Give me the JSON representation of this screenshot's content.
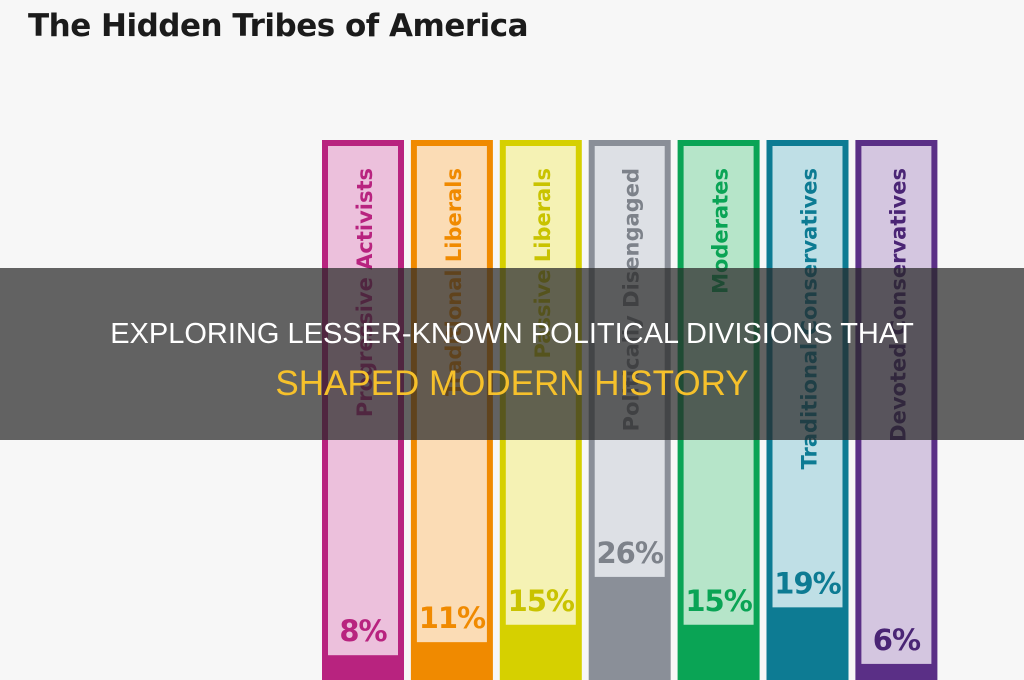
{
  "chart_data": {
    "type": "bar",
    "title": "The Hidden Tribes of America",
    "categories": [
      "Progressive Activists",
      "Traditional Liberals",
      "Passive Liberals",
      "Politically Disengaged",
      "Moderates",
      "Traditional Conservatives",
      "Devoted Conservatives"
    ],
    "values": [
      8,
      11,
      15,
      26,
      15,
      19,
      6
    ],
    "value_labels": [
      "8%",
      "11%",
      "15%",
      "26%",
      "15%",
      "19%",
      "6%"
    ],
    "unit": "%",
    "colors": [
      "#b8237f",
      "#f08a00",
      "#d6d000",
      "#8a8f98",
      "#0aa455",
      "#0d7b93",
      "#5a2f86"
    ],
    "light_colors": [
      "#ecc0dc",
      "#fbdcb5",
      "#f5f2b4",
      "#dde0e5",
      "#b6e5c9",
      "#bfdfe6",
      "#d4c6e0"
    ],
    "label_colors": [
      "#b8237f",
      "#f08a00",
      "#c9c300",
      "#7d828a",
      "#0aa455",
      "#0d7b93",
      "#4a2575"
    ]
  },
  "overlay": {
    "line1": "EXPLORING LESSER-KNOWN POLITICAL DIVISIONS THAT",
    "line2": "SHAPED MODERN HISTORY"
  }
}
